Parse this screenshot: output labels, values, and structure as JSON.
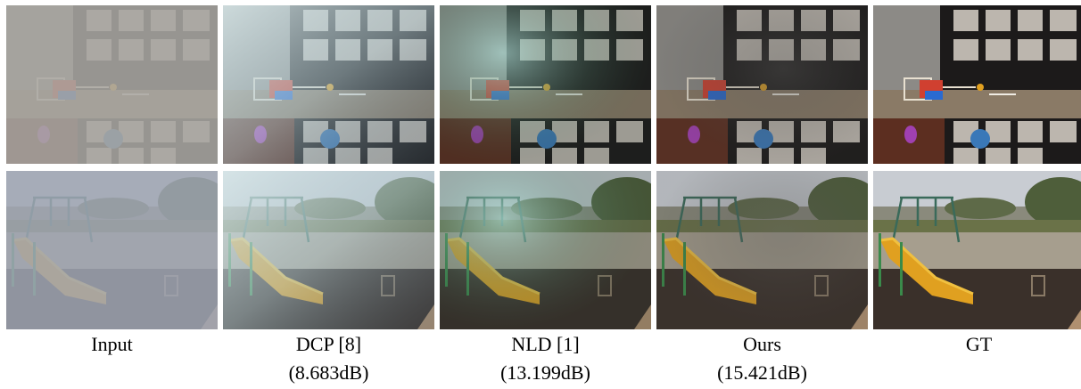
{
  "columns": [
    {
      "id": "input",
      "label": "Input",
      "psnr": ""
    },
    {
      "id": "dcp",
      "label": "DCP [8]",
      "psnr": "(8.683dB)"
    },
    {
      "id": "nld",
      "label": "NLD [1]",
      "psnr": "(13.199dB)"
    },
    {
      "id": "ours",
      "label": "Ours",
      "psnr": "(15.421dB)"
    },
    {
      "id": "gt",
      "label": "GT",
      "psnr": ""
    }
  ],
  "rows": [
    {
      "id": "indoor-scene",
      "subject": "overhead shelving room with toy and ball"
    },
    {
      "id": "playground-scene",
      "subject": "playground with yellow slide"
    }
  ]
}
